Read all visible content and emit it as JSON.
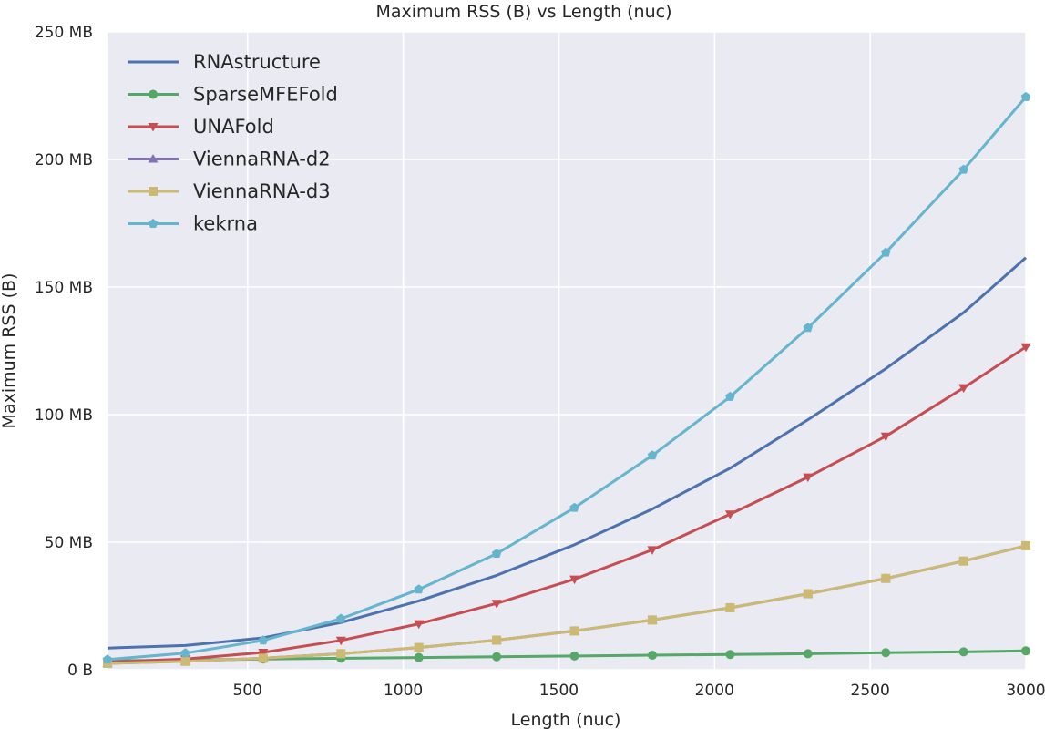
{
  "chart_data": {
    "type": "line",
    "title": "Maximum RSS (B) vs Length (nuc)",
    "xlabel": "Length (nuc)",
    "ylabel": "Maximum RSS (B)",
    "xlim": [
      50,
      3000
    ],
    "ylim": [
      0,
      250
    ],
    "x_unit": "nuc",
    "y_unit": "MB",
    "xticks": [
      500,
      1000,
      1500,
      2000,
      2500,
      3000
    ],
    "yticks": [
      0,
      50,
      100,
      150,
      200,
      250
    ],
    "xtick_labels": [
      "500",
      "1000",
      "1500",
      "2000",
      "2500",
      "3000"
    ],
    "ytick_labels": [
      "0 B",
      "50 MB",
      "100 MB",
      "150 MB",
      "200 MB",
      "250 MB"
    ],
    "grid": true,
    "legend_position": "top-left",
    "background_color": "#EAEAF2",
    "series": [
      {
        "name": "RNAstructure",
        "color": "#4C72B0",
        "marker": "none",
        "x": [
          50,
          300,
          550,
          800,
          1050,
          1300,
          1550,
          1800,
          2050,
          2300,
          2550,
          2800,
          3000
        ],
        "y": [
          8.5,
          9.5,
          12.5,
          18.5,
          27,
          37,
          49,
          63,
          79,
          98,
          118,
          140,
          161.5
        ]
      },
      {
        "name": "SparseMFEFold",
        "color": "#55A868",
        "marker": "circle",
        "x": [
          50,
          300,
          550,
          800,
          1050,
          1300,
          1550,
          1800,
          2050,
          2300,
          2550,
          2800,
          3000
        ],
        "y": [
          3.5,
          3.8,
          4.2,
          4.5,
          4.8,
          5.1,
          5.4,
          5.7,
          6.0,
          6.3,
          6.7,
          7.0,
          7.4
        ]
      },
      {
        "name": "UNAFold",
        "color": "#C44E52",
        "marker": "triangle-down",
        "x": [
          50,
          300,
          550,
          800,
          1050,
          1300,
          1550,
          1800,
          2050,
          2300,
          2550,
          2800,
          3000
        ],
        "y": [
          3,
          4.2,
          6.8,
          11.5,
          18,
          26,
          35.5,
          47,
          61,
          75.5,
          91.5,
          110.5,
          126.5
        ]
      },
      {
        "name": "ViennaRNA-d2",
        "color": "#8172B2",
        "marker": "triangle-up",
        "x": [
          50,
          300,
          550,
          800,
          1050,
          1300,
          1550,
          1800,
          2050,
          2300,
          2550,
          2800,
          3000
        ],
        "y": [
          2.5,
          3.3,
          4.5,
          6.3,
          8.7,
          11.6,
          15.2,
          19.5,
          24.3,
          29.8,
          35.8,
          42.6,
          48.6
        ]
      },
      {
        "name": "ViennaRNA-d3",
        "color": "#CCB974",
        "marker": "square",
        "x": [
          50,
          300,
          550,
          800,
          1050,
          1300,
          1550,
          1800,
          2050,
          2300,
          2550,
          2800,
          3000
        ],
        "y": [
          2.5,
          3.3,
          4.5,
          6.3,
          8.7,
          11.6,
          15.2,
          19.5,
          24.3,
          29.8,
          35.8,
          42.6,
          48.6
        ]
      },
      {
        "name": "kekrna",
        "color": "#64B5CD",
        "marker": "pentagon",
        "x": [
          50,
          300,
          550,
          800,
          1050,
          1300,
          1550,
          1800,
          2050,
          2300,
          2550,
          2800,
          3000
        ],
        "y": [
          4,
          6.5,
          11.5,
          20,
          31.5,
          45.5,
          63.5,
          84,
          107,
          134,
          163.5,
          196,
          224.5
        ]
      }
    ]
  }
}
